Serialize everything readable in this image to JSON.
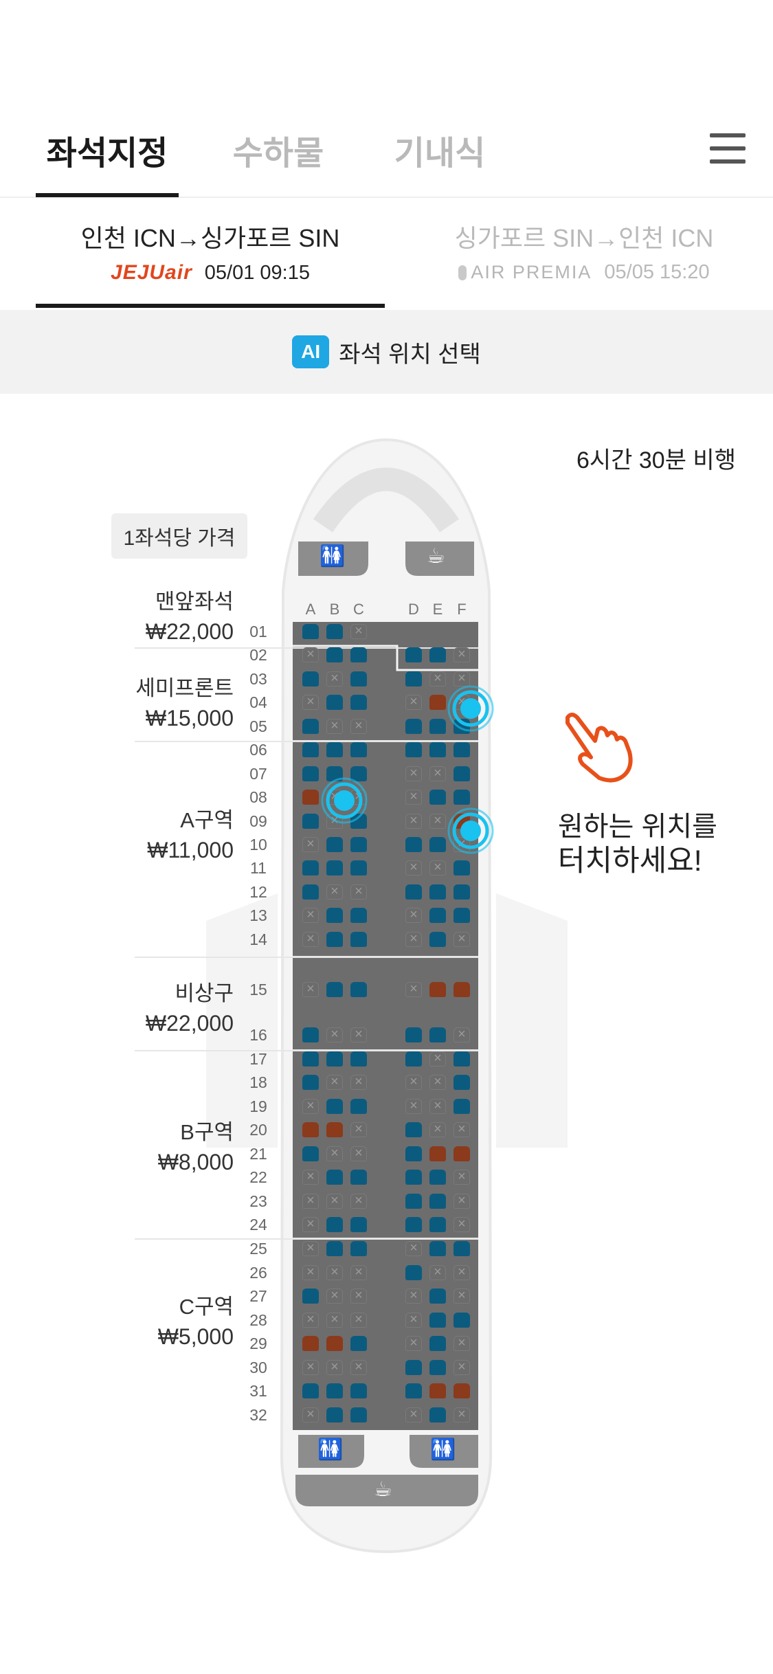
{
  "tabs": [
    {
      "label": "좌석지정",
      "active": true
    },
    {
      "label": "수하물",
      "active": false
    },
    {
      "label": "기내식",
      "active": false
    }
  ],
  "menu_icon": "hamburger-menu-icon",
  "routes": [
    {
      "title": "인천 ICN→싱가포르 SIN",
      "airline": "JEJUair",
      "datetime": "05/01 09:15",
      "active": true
    },
    {
      "title": "싱가포르 SIN→인천 ICN",
      "airline": "AIR PREMIA",
      "datetime": "05/05 15:20",
      "active": false
    }
  ],
  "ai_banner": {
    "badge": "AI",
    "label": "좌석 위치 선택"
  },
  "flight_duration": "6시간 30분 비행",
  "price_title": "1좌석당 가격",
  "zones": [
    {
      "name": "맨앞좌석",
      "price": "₩22,000"
    },
    {
      "name": "세미프론트",
      "price": "₩15,000"
    },
    {
      "name": "A구역",
      "price": "₩11,000"
    },
    {
      "name": "비상구",
      "price": "₩22,000"
    },
    {
      "name": "B구역",
      "price": "₩8,000"
    },
    {
      "name": "C구역",
      "price": "₩5,000"
    }
  ],
  "columns": [
    "A",
    "B",
    "C",
    "D",
    "E",
    "F"
  ],
  "rows": [
    "01",
    "02",
    "03",
    "04",
    "05",
    "06",
    "07",
    "08",
    "09",
    "10",
    "11",
    "12",
    "13",
    "14",
    "15",
    "16",
    "17",
    "18",
    "19",
    "20",
    "21",
    "22",
    "23",
    "24",
    "25",
    "26",
    "27",
    "28",
    "29",
    "30",
    "31",
    "32"
  ],
  "seat_map": [
    "aan...",
    "naaaan",
    "anaann",
    "naanbo",
    "annaaa",
    "aaaaaa",
    "aaanna",
    "boonaa",
    "anannb",
    "naaaan",
    "aaanna",
    "annaaa",
    "naanaa",
    "naanan",
    "naanbb",
    "annaan",
    "aaaana",
    "annnna",
    "naanna",
    "bbnann",
    "annabb",
    "naaaan",
    "nnnaan",
    "naaaan",
    "naanaa",
    "nnnann",
    "annnan",
    "nnnnaa",
    "bbanan",
    "nnnaan",
    "aaaabb",
    "naanan"
  ],
  "seat_legend": {
    "a": "available",
    "b": "booked",
    "n": "unavailable"
  },
  "colors": {
    "available": "#0b5b7f",
    "booked": "#8b3a1c",
    "unavailable": "#6c6c6c",
    "highlight": "#19c2ef",
    "accent": "#1ea7e3",
    "hand": "#e8501a"
  },
  "instruction": {
    "line1": "원하는 위치를",
    "line2": "터치하세요!"
  },
  "icons": {
    "lavatory": "lavatory-icon",
    "galley": "coffee-cup-icon",
    "touch": "touch-hand-icon"
  }
}
